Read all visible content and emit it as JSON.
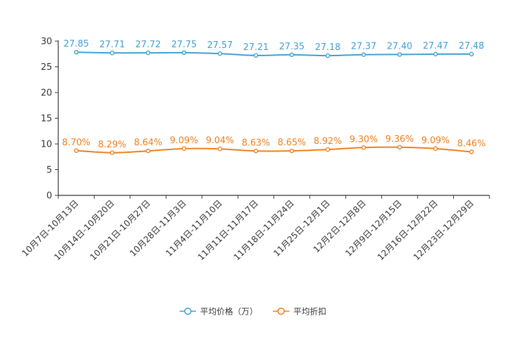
{
  "chart_data": {
    "type": "line",
    "categories": [
      "10月7日-10月13日",
      "10月14日-10月20日",
      "10月21日-10月27日",
      "10月28日-11月3日",
      "11月4日-11月10日",
      "11月11日-11月17日",
      "11月18日-11月24日",
      "11月25日-12月1日",
      "12月2日-12月8日",
      "12月9日-12月15日",
      "12月16日-12月22日",
      "12月23日-12月29日"
    ],
    "ylim": [
      0,
      30
    ],
    "yticks": [
      0,
      5,
      10,
      15,
      20,
      25,
      30
    ],
    "grid": false,
    "legend_position": "bottom-center",
    "series": [
      {
        "name": "平均价格（万）",
        "color": "#3d9fd1",
        "values": [
          27.85,
          27.71,
          27.72,
          27.75,
          27.57,
          27.21,
          27.35,
          27.18,
          27.37,
          27.4,
          27.47,
          27.48
        ],
        "labels": [
          "27.85",
          "27.71",
          "27.72",
          "27.75",
          "27.57",
          "27.21",
          "27.35",
          "27.18",
          "27.37",
          "27.40",
          "27.47",
          "27.48"
        ]
      },
      {
        "name": "平均折扣",
        "color": "#f07d1a",
        "values": [
          8.7,
          8.29,
          8.64,
          9.09,
          9.04,
          8.63,
          8.65,
          8.92,
          9.3,
          9.36,
          9.09,
          8.46
        ],
        "labels": [
          "8.70%",
          "8.29%",
          "8.64%",
          "9.09%",
          "9.04%",
          "8.63%",
          "8.65%",
          "8.92%",
          "9.30%",
          "9.36%",
          "9.09%",
          "8.46%"
        ]
      }
    ]
  }
}
